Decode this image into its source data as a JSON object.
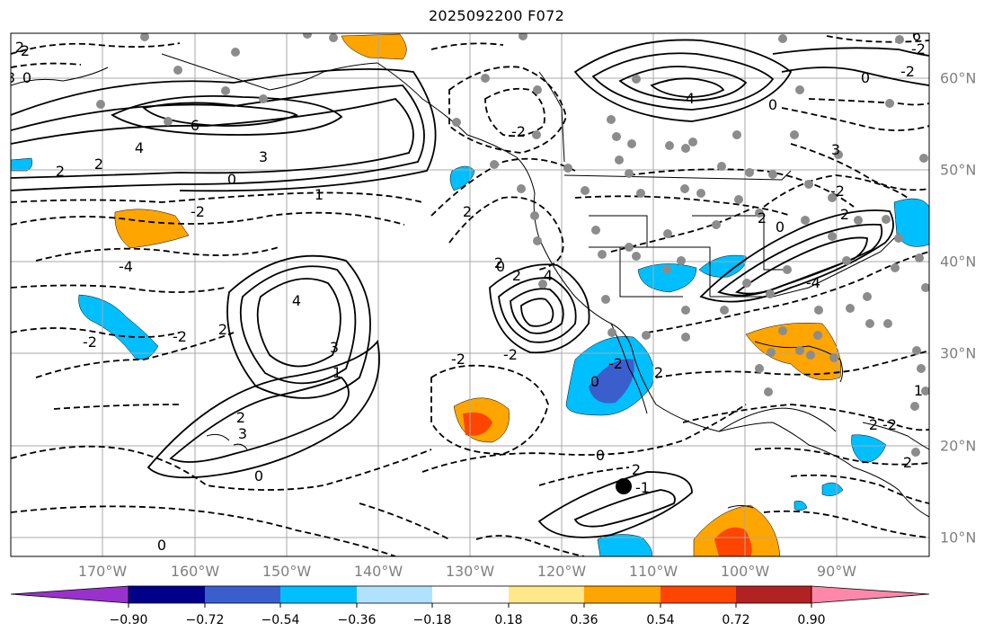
{
  "title": "2025092200 F072",
  "lon_labels": [
    "170°W",
    "160°W",
    "150°W",
    "140°W",
    "130°W",
    "120°W",
    "110°W",
    "100°W",
    "90°W"
  ],
  "lat_labels": [
    "60°N",
    "50°N",
    "40°N",
    "30°N",
    "20°N",
    "10°N"
  ],
  "colorbar": {
    "ticks": [
      "−0.90",
      "−0.72",
      "−0.54",
      "−0.36",
      "−0.18",
      "0.18",
      "0.36",
      "0.54",
      "0.72",
      "0.90"
    ],
    "colors": [
      "#9932cc",
      "#00008b",
      "#3a5fcd",
      "#00bfff",
      "#b0e2ff",
      "#ffffff",
      "#ffe88a",
      "#ffa500",
      "#ff4500",
      "#b22222",
      "#ff88aa"
    ]
  },
  "contour_labels": [
    "2",
    "0",
    "6",
    "4",
    "3",
    "2",
    "0",
    "1",
    "4",
    "3",
    "2",
    "-4",
    "-2",
    "2",
    "4",
    "3",
    "1",
    "-2",
    "2",
    "0",
    "2",
    "3",
    "0",
    "-2",
    "2",
    "-2",
    "-2",
    "4",
    "-2",
    "3",
    "0",
    "-2",
    "2",
    "2",
    "-2",
    "0",
    "-2",
    "2",
    "-2",
    "2",
    "0",
    "2",
    "-4",
    "0",
    "-1",
    "2",
    "6",
    "-2",
    "2",
    "0",
    "0",
    "1",
    "2"
  ]
}
